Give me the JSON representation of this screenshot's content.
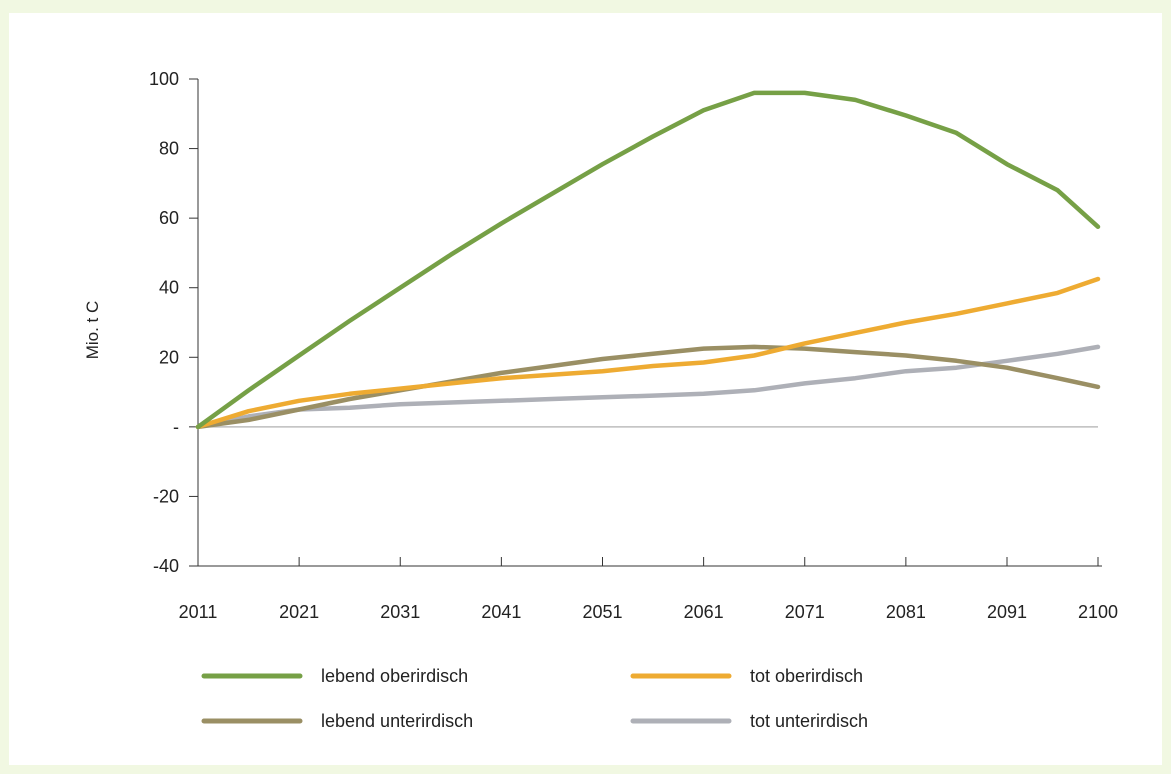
{
  "chart_data": {
    "type": "line",
    "ylabel": "Mio. t C",
    "xlabel": "",
    "title": "",
    "x": [
      2011,
      2016,
      2021,
      2026,
      2031,
      2036,
      2041,
      2046,
      2051,
      2056,
      2061,
      2066,
      2071,
      2076,
      2081,
      2086,
      2091,
      2096,
      2100
    ],
    "x_ticks": [
      "2011",
      "2021",
      "2031",
      "2041",
      "2051",
      "2061",
      "2071",
      "2081",
      "2091",
      "2100"
    ],
    "x_tick_values": [
      2011,
      2021,
      2031,
      2041,
      2051,
      2061,
      2071,
      2081,
      2091,
      2100
    ],
    "y_ticks": [
      "-40",
      "-20",
      "-",
      "20",
      "40",
      "60",
      "80",
      "100"
    ],
    "y_tick_values": [
      -40,
      -20,
      0,
      20,
      40,
      60,
      80,
      100
    ],
    "xlim": [
      2011,
      2100
    ],
    "ylim": [
      -40,
      100
    ],
    "grid": false,
    "legend_position": "bottom",
    "series": [
      {
        "name": "lebend oberirdisch",
        "color": "#76a046",
        "values": [
          0,
          10.5,
          20.5,
          30.5,
          40,
          49.5,
          58.5,
          67,
          75.5,
          83.5,
          91,
          96,
          96,
          94,
          89.5,
          84.5,
          75.5,
          68,
          57.5
        ]
      },
      {
        "name": "tot oberirdisch",
        "color": "#eeab32",
        "values": [
          0,
          4.5,
          7.5,
          9.5,
          11,
          12.5,
          14,
          15,
          16,
          17.5,
          18.5,
          20.5,
          24,
          27,
          30,
          32.5,
          35.5,
          38.5,
          42.5
        ]
      },
      {
        "name": "lebend unterirdisch",
        "color": "#9a8f64",
        "values": [
          0,
          2,
          5,
          8,
          10.5,
          13,
          15.5,
          17.5,
          19.5,
          21,
          22.5,
          23,
          22.5,
          21.5,
          20.5,
          19,
          17,
          14,
          11.5
        ]
      },
      {
        "name": "tot unterirdisch",
        "color": "#aeb0b7",
        "values": [
          0,
          3,
          5,
          5.5,
          6.5,
          7,
          7.5,
          8,
          8.5,
          9,
          9.5,
          10.5,
          12.5,
          14,
          16,
          17,
          19,
          21,
          23
        ]
      }
    ]
  }
}
